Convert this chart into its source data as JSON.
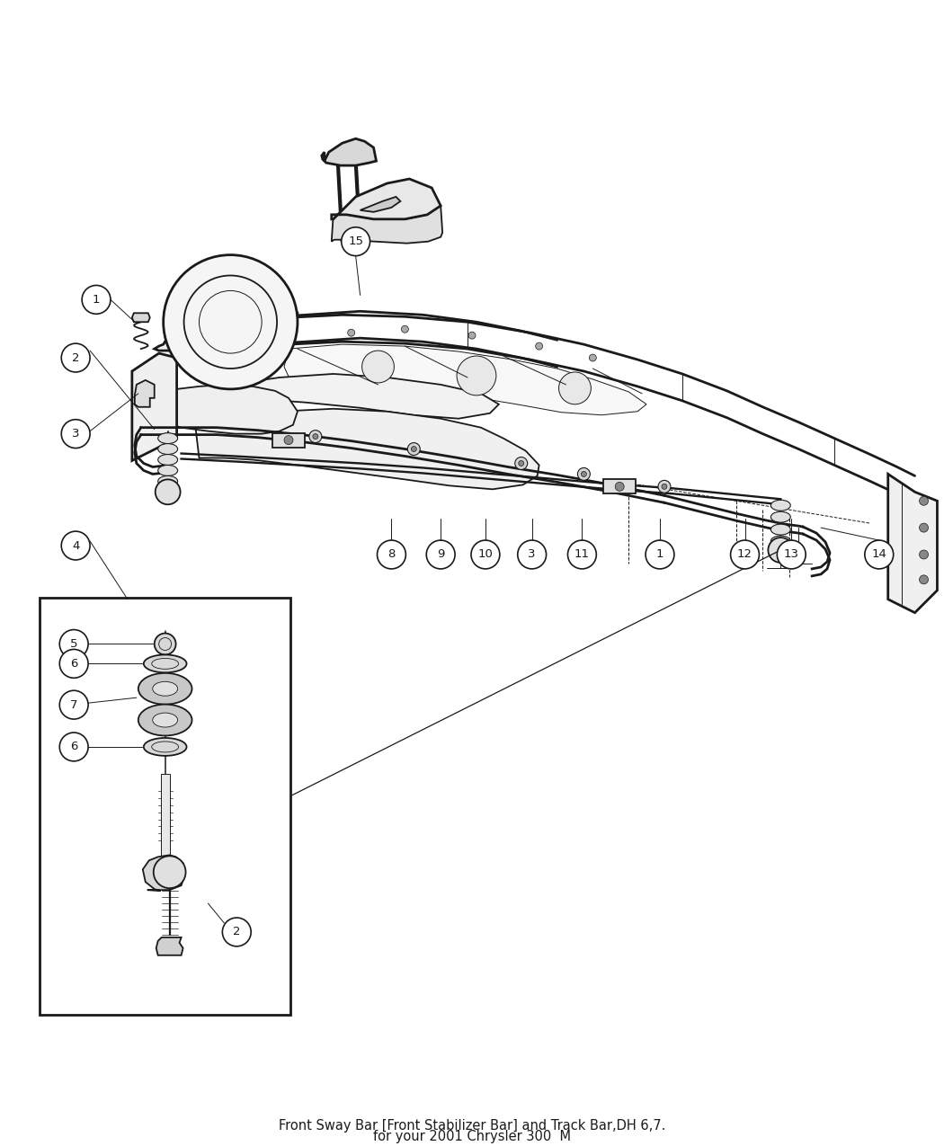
{
  "bg_color": "#ffffff",
  "line_color": "#1a1a1a",
  "title_line1": "Front Sway Bar [Front Stabilizer Bar] and Track Bar,DH 6,7.",
  "title_line2": "for your 2001 Chrysler 300  M",
  "title_fontsize": 10.5,
  "callout_fontsize": 9.5,
  "figure_bg": "#ffffff",
  "image_path": null
}
